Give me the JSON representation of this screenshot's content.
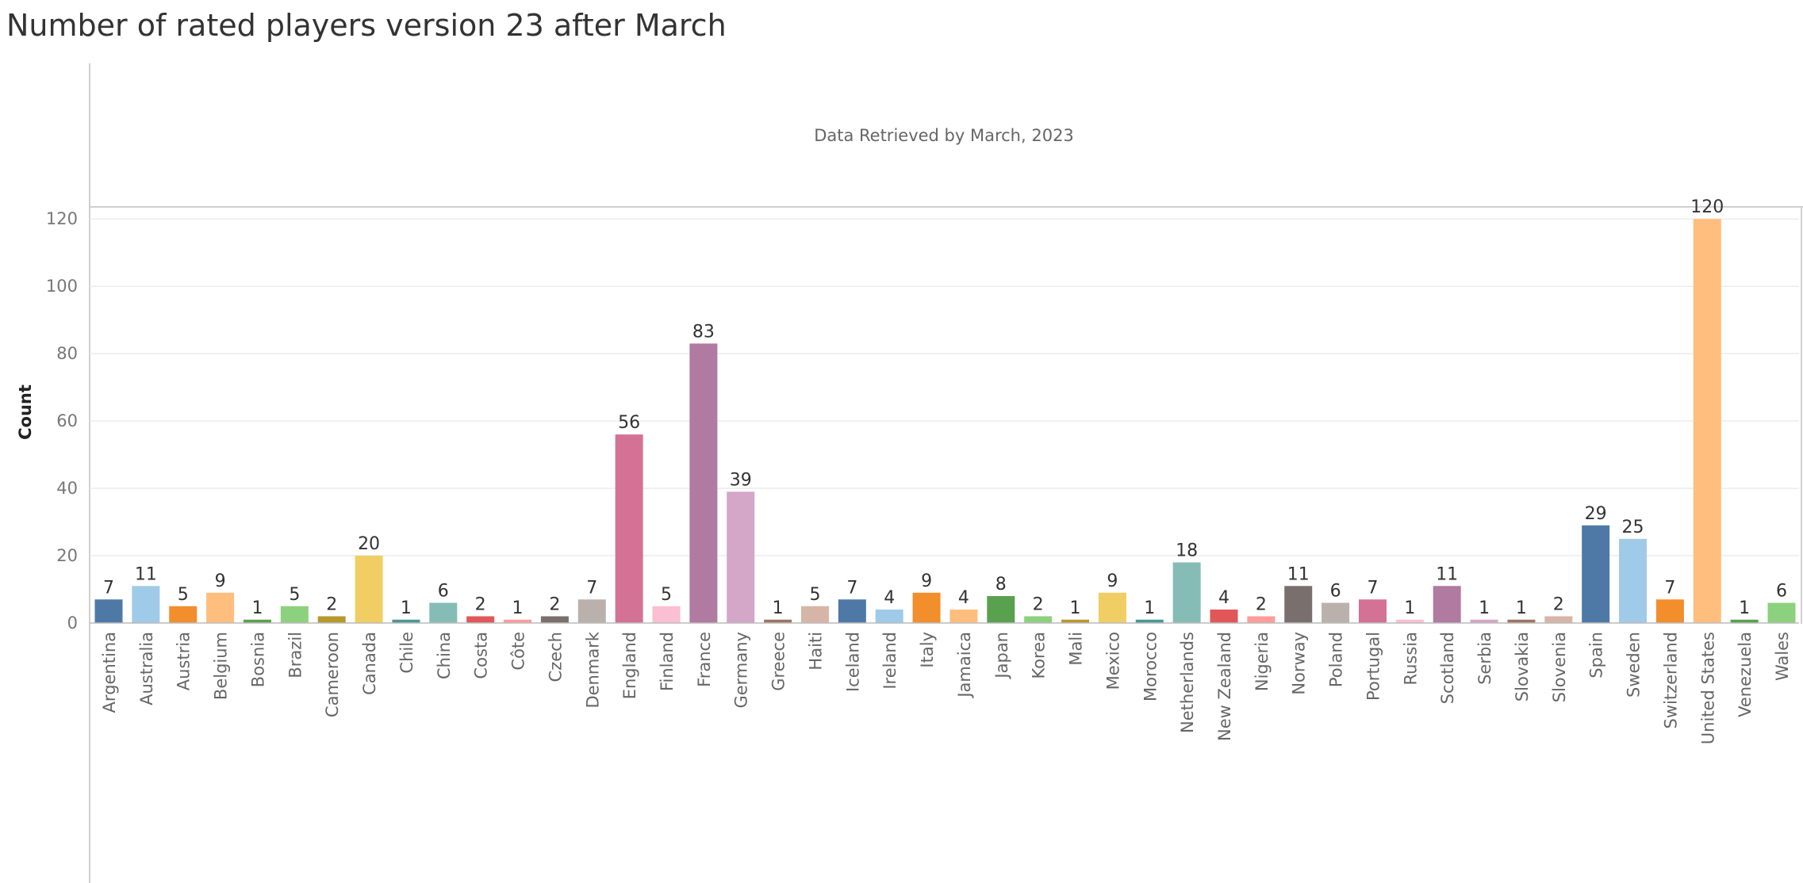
{
  "title": "Number of rated players version 23 after March",
  "chart_data": {
    "type": "bar",
    "title": "Number of rated players version 23 after March",
    "annotation": "Data Retrieved by March, 2023",
    "xlabel": "",
    "ylabel": "Count",
    "ylim": [
      0,
      125
    ],
    "yticks": [
      0,
      20,
      40,
      60,
      80,
      100,
      120
    ],
    "grid": true,
    "categories": [
      "Argentina",
      "Australia",
      "Austria",
      "Belgium",
      "Bosnia",
      "Brazil",
      "Cameroon",
      "Canada",
      "Chile",
      "China",
      "Costa",
      "Côte",
      "Czech",
      "Denmark",
      "England",
      "Finland",
      "France",
      "Germany",
      "Greece",
      "Haiti",
      "Iceland",
      "Ireland",
      "Italy",
      "Jamaica",
      "Japan",
      "Korea",
      "Mali",
      "Mexico",
      "Morocco",
      "Netherlands",
      "New Zealand",
      "Nigeria",
      "Norway",
      "Poland",
      "Portugal",
      "Russia",
      "Scotland",
      "Serbia",
      "Slovakia",
      "Slovenia",
      "Spain",
      "Sweden",
      "Switzerland",
      "United States",
      "Venezuela",
      "Wales"
    ],
    "values": [
      7,
      11,
      5,
      9,
      1,
      5,
      2,
      20,
      1,
      6,
      2,
      1,
      2,
      7,
      56,
      5,
      83,
      39,
      1,
      5,
      7,
      4,
      9,
      4,
      8,
      2,
      1,
      9,
      1,
      18,
      4,
      2,
      11,
      6,
      7,
      1,
      11,
      1,
      1,
      2,
      29,
      25,
      7,
      120,
      1,
      6
    ],
    "colors": [
      "#4e79a7",
      "#a0cbe8",
      "#f28e2b",
      "#ffbe7d",
      "#59a14f",
      "#8cd17d",
      "#b6992d",
      "#f1ce63",
      "#499894",
      "#86bcb6",
      "#e15759",
      "#ff9d9a",
      "#79706e",
      "#bab0ac",
      "#d37295",
      "#fabfd2",
      "#b07aa1",
      "#d4a6c8",
      "#9d7660",
      "#d7b5a6"
    ]
  }
}
